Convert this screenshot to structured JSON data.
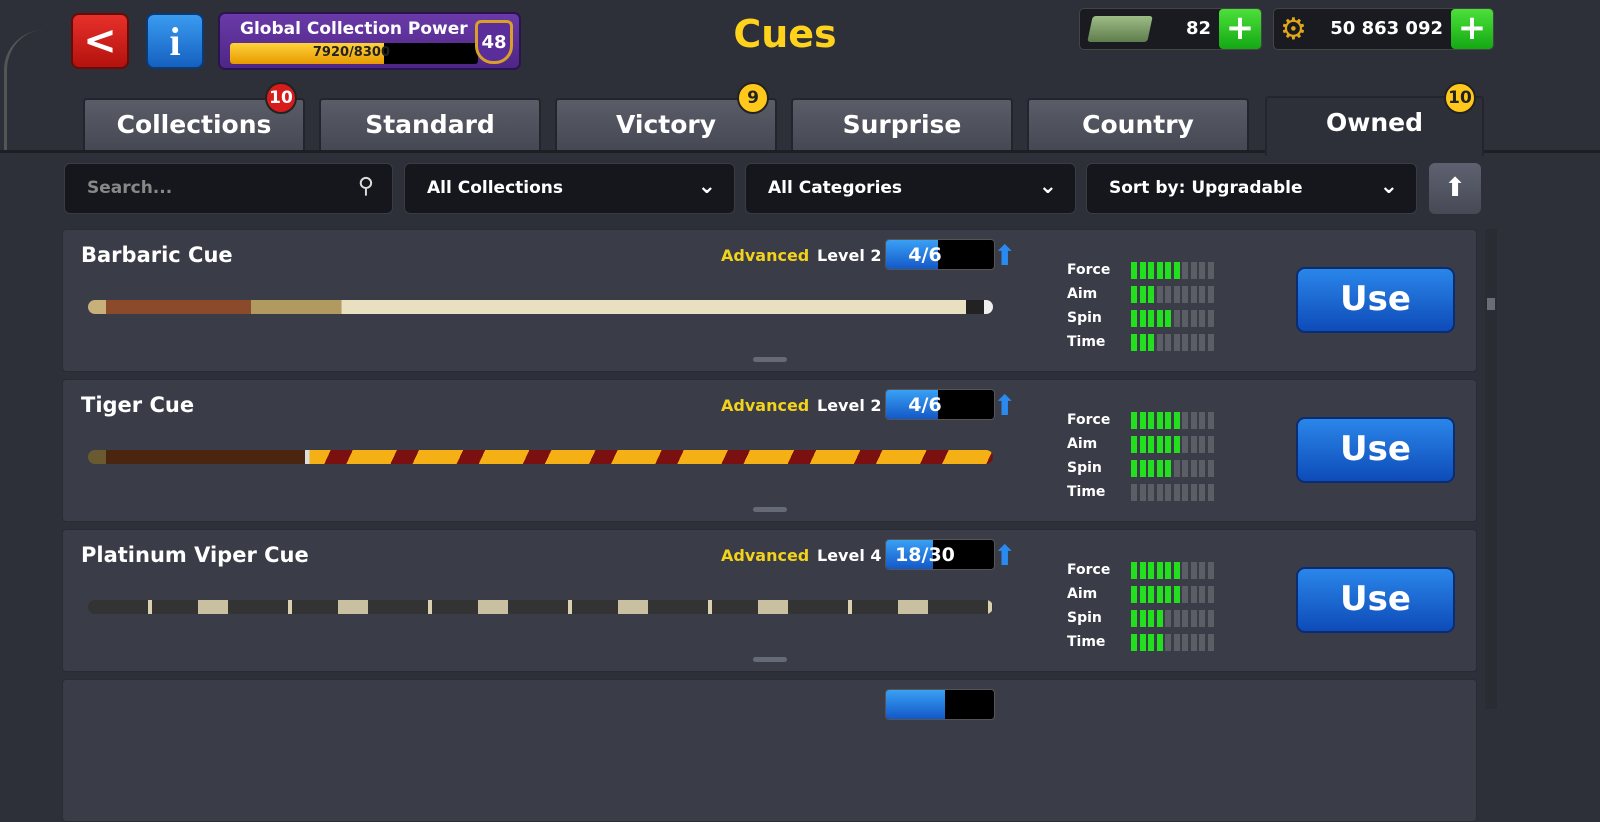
{
  "header": {
    "title": "Cues",
    "back_icon": "chevron-left-icon",
    "info_icon": "info-icon",
    "collection_power": {
      "label": "Global Collection Power",
      "progress_text": "7920/8300",
      "current": 7920,
      "max": 8300,
      "level": "48"
    },
    "cash": {
      "value": "82",
      "icon": "cash-icon"
    },
    "coins": {
      "value": "50 863 092",
      "icon": "coin-gear-icon"
    }
  },
  "tabs": [
    {
      "label": "Collections",
      "badge": "10",
      "badge_color": "#d81c1c"
    },
    {
      "label": "Standard"
    },
    {
      "label": "Victory",
      "badge": "9",
      "badge_color": "#ffc81a"
    },
    {
      "label": "Surprise"
    },
    {
      "label": "Country"
    },
    {
      "label": "Owned",
      "badge": "10",
      "badge_color": "#ffc81a",
      "active": true
    }
  ],
  "filters": {
    "search_placeholder": "Search...",
    "collections": "All Collections",
    "categories": "All Categories",
    "sort": "Sort by: Upgradable"
  },
  "stat_labels": [
    "Force",
    "Aim",
    "Spin",
    "Time"
  ],
  "cues": [
    {
      "name": "Barbaric Cue",
      "tier": "Advanced",
      "level": "Level 2",
      "progress": "4/6",
      "progress_fraction": 0.667,
      "stats": [
        6,
        3,
        5,
        3
      ],
      "action": "Use"
    },
    {
      "name": "Tiger Cue",
      "tier": "Advanced",
      "level": "Level 2",
      "progress": "4/6",
      "progress_fraction": 0.667,
      "stats": [
        6,
        6,
        5,
        0
      ],
      "action": "Use"
    },
    {
      "name": "Platinum Viper Cue",
      "tier": "Advanced",
      "level": "Level 4",
      "progress": "18/30",
      "progress_fraction": 0.6,
      "stats": [
        6,
        6,
        4,
        4
      ],
      "action": "Use"
    }
  ],
  "colors": {
    "accent": "#ffd21c",
    "stat_on": "#22e01e",
    "use_button": "#1a6ad8"
  }
}
